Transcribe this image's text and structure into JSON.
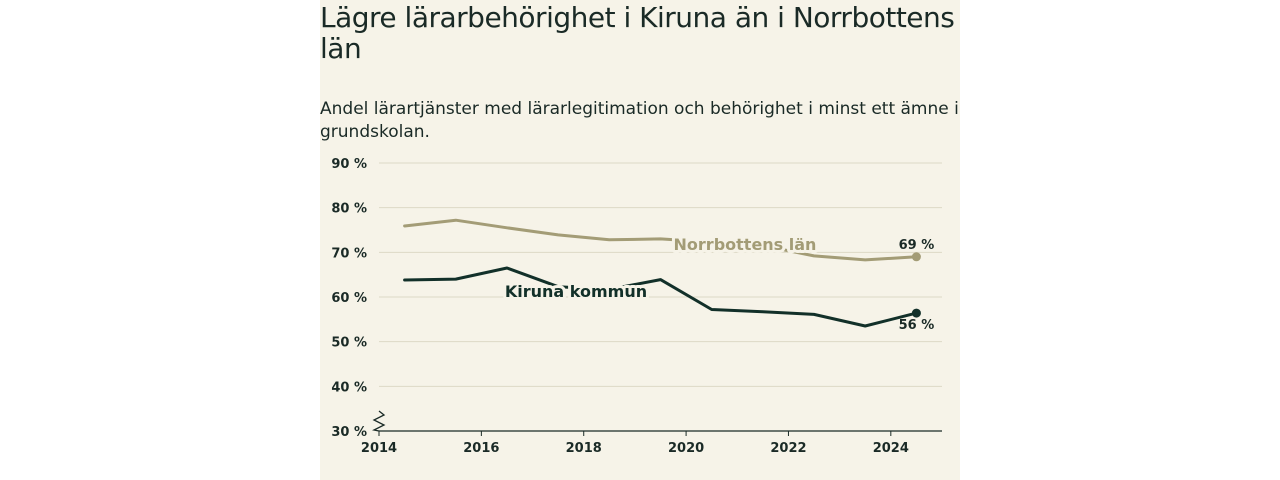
{
  "colors": {
    "background": "#f6f3e8",
    "norrbotten": "#a39c76",
    "kiruna": "#123029",
    "grid": "#dcd8c6",
    "text": "#1a2a26"
  },
  "chart_data": {
    "type": "line",
    "title": "Lägre lärarbehörighet i Kiruna än i Norrbottens län",
    "subtitle": "Andel lärartjänster med lärarlegitimation och behörighet i minst ett ämne i grundskolan.",
    "x_ticks": [
      "2014",
      "2016",
      "2018",
      "2020",
      "2022",
      "2024"
    ],
    "y_ticks": [
      "30 %",
      "40 %",
      "50 %",
      "60 %",
      "70 %",
      "80 %",
      "90 %"
    ],
    "xlim": [
      2014,
      2025
    ],
    "ylim": [
      30,
      90
    ],
    "y_axis_break": true,
    "grid": true,
    "x": [
      2014.5,
      2015.5,
      2016.5,
      2017.5,
      2018.5,
      2019.5,
      2020.5,
      2021.5,
      2022.5,
      2023.5,
      2024.5
    ],
    "series": [
      {
        "name": "Norrbottens län",
        "color": "#a39c76",
        "values": [
          75.9,
          77.2,
          75.5,
          73.9,
          72.8,
          73.0,
          72.3,
          71.5,
          69.2,
          68.3,
          69.0
        ],
        "end_label": "69 %"
      },
      {
        "name": "Kiruna kommun",
        "color": "#123029",
        "values": [
          63.8,
          64.0,
          66.5,
          62.3,
          61.7,
          63.9,
          57.2,
          56.7,
          56.1,
          53.5,
          56.4
        ],
        "end_label": "56 %"
      }
    ]
  }
}
